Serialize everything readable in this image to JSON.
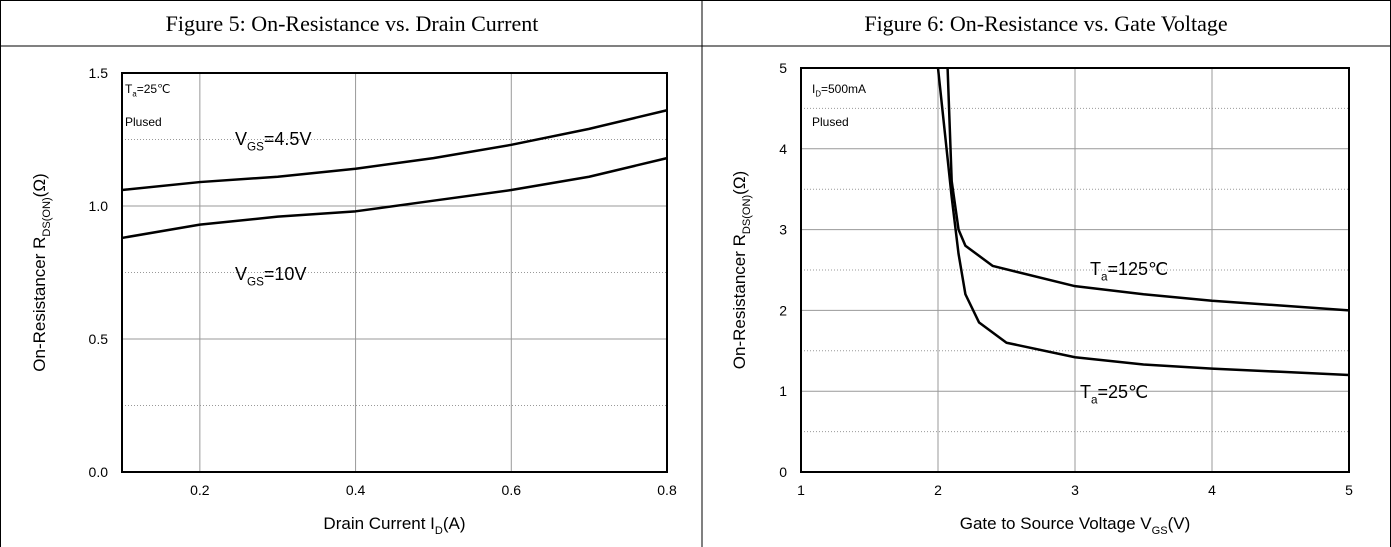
{
  "chart_data": [
    {
      "type": "line",
      "title": "Figure 5: On-Resistance vs. Drain Current",
      "xlabel": [
        "Drain Current I",
        "D",
        "(A)"
      ],
      "ylabel": [
        "On-Resistancer R",
        "DS(ON)",
        "(Ω)"
      ],
      "annotations": [
        [
          "T",
          "a",
          "=25℃"
        ],
        [
          "Plused"
        ],
        [
          "V",
          "GS",
          "=4.5V"
        ],
        [
          "V",
          "GS",
          "=10V"
        ]
      ],
      "xlim": [
        0.1,
        0.8
      ],
      "xticks": [
        0.2,
        0.4,
        0.6,
        0.8
      ],
      "ylim": [
        0,
        1.5
      ],
      "yticks": [
        {
          "value": 0,
          "label": "0.0"
        },
        0.5,
        {
          "value": 1,
          "label": "1.0"
        },
        1.5
      ],
      "minor_yticks": [
        0.25,
        0.75,
        1.25
      ],
      "grid": true,
      "series": [
        {
          "color": "#000000",
          "x": [
            0.1,
            0.2,
            0.3,
            0.4,
            0.5,
            0.6,
            0.7,
            0.8
          ],
          "values": [
            1.06,
            1.09,
            1.11,
            1.14,
            1.18,
            1.23,
            1.29,
            1.36
          ]
        },
        {
          "color": "#000000",
          "x": [
            0.1,
            0.2,
            0.3,
            0.4,
            0.5,
            0.6,
            0.7,
            0.8
          ],
          "values": [
            0.88,
            0.93,
            0.96,
            0.98,
            1.02,
            1.06,
            1.11,
            1.18
          ]
        }
      ]
    },
    {
      "type": "line",
      "title": "Figure 6: On-Resistance vs. Gate Voltage",
      "xlabel": [
        "Gate to Source Voltage V",
        "GS",
        "(V)"
      ],
      "ylabel": [
        "On-Resistancer R",
        "DS(ON)",
        "(Ω)"
      ],
      "annotations": [
        [
          "I",
          "D",
          "=500mA"
        ],
        [
          "Plused"
        ],
        [
          "T",
          "a",
          "=125℃"
        ],
        [
          "T",
          "a",
          "=25℃"
        ]
      ],
      "xlim": [
        1,
        5
      ],
      "xticks": [
        1,
        2,
        3,
        4,
        5
      ],
      "ylim": [
        0,
        5
      ],
      "yticks": [
        0,
        1,
        2,
        3,
        4,
        5
      ],
      "minor_yticks": [
        0.5,
        1.5,
        2.5,
        3.5,
        4.5
      ],
      "grid": true,
      "series": [
        {
          "color": "#000000",
          "x": [
            2.07,
            2.1,
            2.15,
            2.2,
            2.4,
            3,
            3.5,
            4,
            4.5,
            5
          ],
          "values": [
            5,
            3.6,
            3.0,
            2.8,
            2.55,
            2.3,
            2.2,
            2.12,
            2.06,
            2.0
          ]
        },
        {
          "color": "#000000",
          "x": [
            2.0,
            2.05,
            2.1,
            2.15,
            2.2,
            2.3,
            2.5,
            3,
            3.5,
            4,
            4.5,
            5
          ],
          "values": [
            5,
            4.2,
            3.4,
            2.7,
            2.2,
            1.85,
            1.6,
            1.42,
            1.33,
            1.28,
            1.24,
            1.2
          ]
        }
      ]
    }
  ]
}
